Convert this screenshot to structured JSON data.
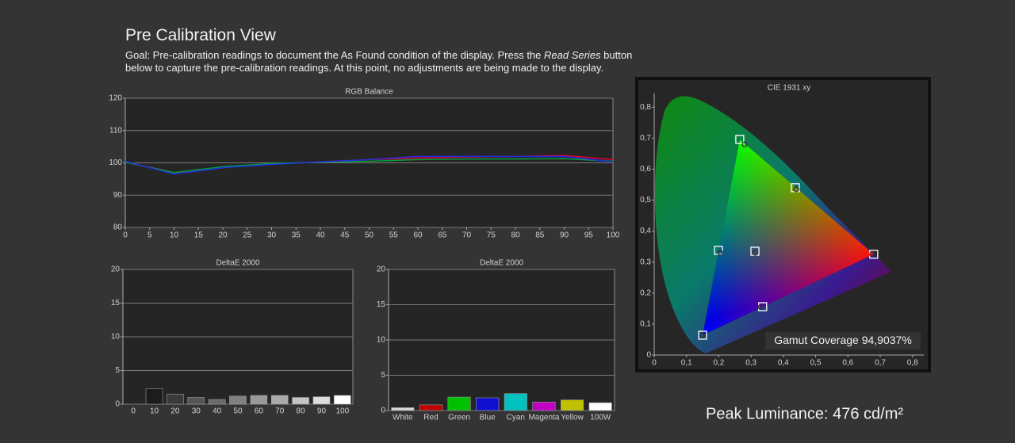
{
  "header": {
    "title": "Pre Calibration View",
    "goal": [
      "Goal: Pre-calibration readings to document the As Found condition of the display. Press the ",
      "Read Series",
      " button below to capture the pre-calibration readings. At this point, no adjustments are being made to the display."
    ]
  },
  "chart_data": [
    {
      "type": "line",
      "title": "RGB Balance",
      "x": [
        0,
        10,
        20,
        30,
        40,
        50,
        60,
        70,
        80,
        90,
        100
      ],
      "series": [
        {
          "color": "#e0002a",
          "values": [
            100.3,
            97.0,
            98.6,
            99.6,
            100.3,
            101.0,
            101.5,
            101.8,
            102.0,
            102.3,
            101.0
          ]
        },
        {
          "color": "#00a040",
          "values": [
            100.2,
            97.0,
            98.8,
            99.8,
            100.2,
            100.5,
            101.0,
            101.2,
            101.2,
            101.3,
            100.5
          ]
        },
        {
          "color": "#2030e0",
          "values": [
            100.5,
            96.5,
            98.5,
            99.5,
            100.3,
            101.0,
            102.0,
            102.0,
            102.0,
            102.0,
            100.3
          ]
        }
      ],
      "xlim": [
        0,
        100
      ],
      "xticks": [
        0,
        5,
        10,
        15,
        20,
        25,
        30,
        35,
        40,
        45,
        50,
        55,
        60,
        65,
        70,
        75,
        80,
        85,
        90,
        95,
        100
      ],
      "ylim": [
        80,
        120
      ],
      "yticks": [
        80,
        90,
        100,
        110,
        120
      ],
      "grid": true
    },
    {
      "type": "bar",
      "title": "DeltaE 2000",
      "categories": [
        "0",
        "10",
        "20",
        "30",
        "40",
        "50",
        "60",
        "70",
        "80",
        "90",
        "100"
      ],
      "values": [
        0,
        2.3,
        1.5,
        1.0,
        0.7,
        1.2,
        1.3,
        1.3,
        1.0,
        1.1,
        1.3
      ],
      "colors": [
        "#111111",
        "#1c1c1c",
        "#3a3a3a",
        "#555555",
        "#6a6a6a",
        "#808080",
        "#999999",
        "#aaaaaa",
        "#c4c4c4",
        "#dddddd",
        "#ffffff"
      ],
      "ylim": [
        0,
        20
      ],
      "yticks": [
        0,
        5,
        10,
        15,
        20
      ],
      "grid": true
    },
    {
      "type": "bar",
      "title": "DeltaE 2000",
      "categories": [
        "White",
        "Red",
        "Green",
        "Blue",
        "Cyan",
        "Magenta",
        "Yellow",
        "100W"
      ],
      "values": [
        0.4,
        0.8,
        1.9,
        1.8,
        2.4,
        1.2,
        1.5,
        1.1
      ],
      "colors": [
        "#d8d8d8",
        "#c00000",
        "#00c000",
        "#1010d0",
        "#00c0c0",
        "#c000c0",
        "#c0c000",
        "#ffffff"
      ],
      "ylim": [
        0,
        20
      ],
      "yticks": [
        0,
        5,
        10,
        15,
        20
      ],
      "grid": true
    },
    {
      "type": "scatter",
      "title": "CIE 1931 xy",
      "series": [
        {
          "marker": "square",
          "color": "#ffffff",
          "x": [
            0.68,
            0.265,
            0.15,
            0.199,
            0.336,
            0.437,
            0.312
          ],
          "y": [
            0.325,
            0.696,
            0.064,
            0.338,
            0.156,
            0.54,
            0.335
          ]
        },
        {
          "marker": "circle",
          "color": "#333333",
          "x": [
            0.675,
            0.28,
            0.15,
            0.205,
            0.33,
            0.44,
            0.313
          ],
          "y": [
            0.325,
            0.68,
            0.065,
            0.33,
            0.155,
            0.535,
            0.33
          ]
        }
      ],
      "xlim": [
        0,
        0.835
      ],
      "xticks": [
        0,
        {
          "value": 0.1,
          "label": "0,1"
        },
        {
          "value": 0.2,
          "label": "0,2"
        },
        {
          "value": 0.3,
          "label": "0,3"
        },
        {
          "value": 0.4,
          "label": "0,4"
        },
        {
          "value": 0.5,
          "label": "0,5"
        },
        {
          "value": 0.6,
          "label": "0,6"
        },
        {
          "value": 0.7,
          "label": "0,7"
        },
        {
          "value": 0.8,
          "label": "0,8"
        }
      ],
      "ylim": [
        0,
        0.845
      ],
      "yticks": [
        0,
        {
          "value": 0.1,
          "label": "0,1"
        },
        {
          "value": 0.2,
          "label": "0,2"
        },
        {
          "value": 0.3,
          "label": "0,3"
        },
        {
          "value": 0.4,
          "label": "0,4"
        },
        {
          "value": 0.5,
          "label": "0,5"
        },
        {
          "value": 0.6,
          "label": "0,6"
        },
        {
          "value": 0.7,
          "label": "0,7"
        },
        {
          "value": 0.8,
          "label": "0,8"
        }
      ],
      "grid": false,
      "annotation": "Gamut Coverage 94,9037%"
    }
  ],
  "peak_luminance": "Peak Luminance: 476 cd/m²"
}
